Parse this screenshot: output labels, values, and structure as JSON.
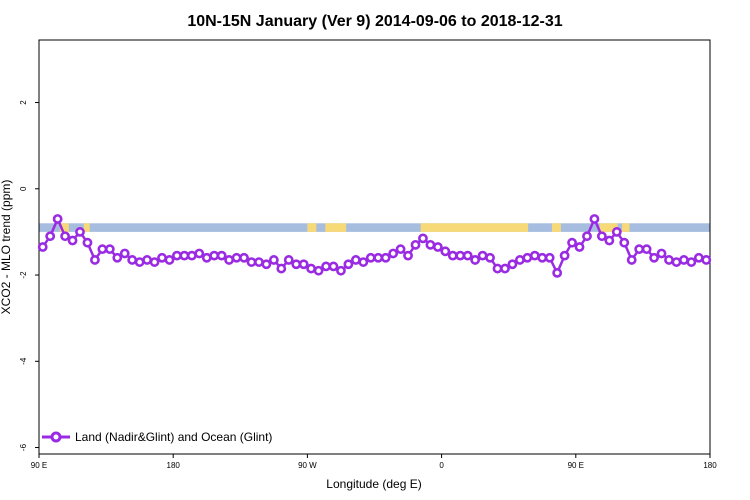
{
  "chart_data": {
    "type": "line",
    "title": "10N-15N January (Ver 9)   2014-09-06 to 2018-12-31",
    "xlabel": "Longitude (deg E)",
    "ylabel": "XCO2 - MLO trend (ppm)",
    "xlim": [
      90,
      540
    ],
    "ylim": [
      -6.15,
      3.45
    ],
    "x_ticks": [
      {
        "value": 90,
        "label": "90 E"
      },
      {
        "value": 180,
        "label": "180"
      },
      {
        "value": 270,
        "label": "90 W"
      },
      {
        "value": 360,
        "label": "0"
      },
      {
        "value": 450,
        "label": "90 E"
      },
      {
        "value": 540,
        "label": "180"
      }
    ],
    "y_ticks": [
      {
        "value": 2,
        "label": "2"
      },
      {
        "value": 0,
        "label": "0"
      },
      {
        "value": -2,
        "label": "-2"
      },
      {
        "value": -4,
        "label": "-4"
      },
      {
        "value": -6,
        "label": "-6"
      }
    ],
    "grid": false,
    "legend_position": "bottom-left",
    "colors": {
      "series": "#9a2be2",
      "ocean_band": "#a7bde0",
      "land_band": "#f7d977"
    },
    "surface_band": {
      "y_top": -0.8,
      "y_bottom": -1.0,
      "land_segments": [
        [
          104,
          110
        ],
        [
          120,
          124
        ],
        [
          270,
          276
        ],
        [
          282,
          296
        ],
        [
          346,
          418
        ],
        [
          434,
          440
        ],
        [
          466,
          478
        ],
        [
          481,
          486
        ]
      ]
    },
    "series": [
      {
        "name": "Land (Nadir&Glint) and Ocean (Glint)",
        "x": [
          92.5,
          97.5,
          102.5,
          107.5,
          112.5,
          117.5,
          122.5,
          127.5,
          132.5,
          137.5,
          142.5,
          147.5,
          152.5,
          157.5,
          162.5,
          167.5,
          172.5,
          177.5,
          182.5,
          187.5,
          192.5,
          197.5,
          202.5,
          207.5,
          212.5,
          217.5,
          222.5,
          227.5,
          232.5,
          237.5,
          242.5,
          247.5,
          252.5,
          257.5,
          262.5,
          267.5,
          272.5,
          277.5,
          282.5,
          287.5,
          292.5,
          297.5,
          302.5,
          307.5,
          312.5,
          317.5,
          322.5,
          327.5,
          332.5,
          337.5,
          342.5,
          347.5,
          352.5,
          357.5,
          362.5,
          367.5,
          372.5,
          377.5,
          382.5,
          387.5,
          392.5,
          397.5,
          402.5,
          407.5,
          412.5,
          417.5,
          422.5,
          427.5,
          432.5,
          437.5,
          442.5,
          447.5,
          452.5,
          457.5,
          462.5,
          467.5,
          472.5,
          477.5,
          482.5,
          487.5,
          492.5,
          497.5,
          502.5,
          507.5,
          512.5,
          517.5,
          522.5,
          527.5,
          532.5,
          537.5
        ],
        "values": [
          -1.35,
          -1.1,
          -0.7,
          -1.1,
          -1.2,
          -1.0,
          -1.25,
          -1.65,
          -1.4,
          -1.4,
          -1.6,
          -1.5,
          -1.65,
          -1.7,
          -1.65,
          -1.7,
          -1.6,
          -1.65,
          -1.55,
          -1.55,
          -1.55,
          -1.5,
          -1.6,
          -1.55,
          -1.55,
          -1.65,
          -1.6,
          -1.6,
          -1.7,
          -1.7,
          -1.75,
          -1.65,
          -1.85,
          -1.65,
          -1.75,
          -1.75,
          -1.85,
          -1.9,
          -1.8,
          -1.8,
          -1.9,
          -1.75,
          -1.65,
          -1.7,
          -1.6,
          -1.6,
          -1.6,
          -1.5,
          -1.4,
          -1.55,
          -1.3,
          -1.15,
          -1.3,
          -1.35,
          -1.45,
          -1.55,
          -1.55,
          -1.55,
          -1.65,
          -1.55,
          -1.6,
          -1.85,
          -1.85,
          -1.75,
          -1.65,
          -1.6,
          -1.55,
          -1.6,
          -1.6,
          -1.95,
          -1.55,
          -1.25,
          -1.35,
          -1.1,
          -0.7,
          -1.1,
          -1.2,
          -1.0,
          -1.25,
          -1.65,
          -1.4,
          -1.4,
          -1.6,
          -1.5,
          -1.65,
          -1.7,
          -1.65,
          -1.7,
          -1.6,
          -1.65
        ]
      }
    ]
  }
}
